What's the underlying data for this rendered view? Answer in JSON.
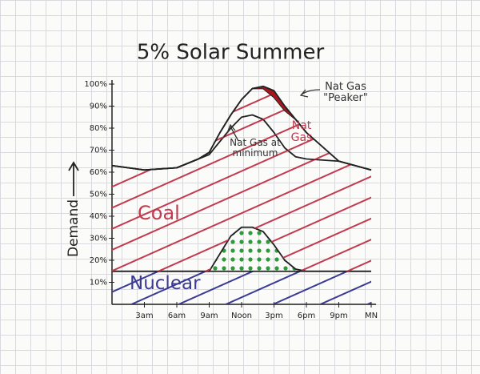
{
  "chart_data": {
    "type": "area",
    "stacked": true,
    "title": "5% Solar Summer",
    "y_label": "Demand",
    "x": [
      0,
      3,
      6,
      8,
      9,
      10,
      11,
      12,
      13,
      14,
      15,
      16,
      17,
      18,
      21,
      24
    ],
    "series": [
      {
        "name": "Nuclear",
        "color": "#3b3b94",
        "pattern": "hatch",
        "values": [
          15,
          15,
          15,
          15,
          15,
          15,
          15,
          15,
          15,
          15,
          15,
          15,
          15,
          15,
          15,
          15
        ]
      },
      {
        "color": "#2e9a3a",
        "pattern": "dots",
        "values": [
          0,
          0,
          0,
          0,
          0,
          8,
          16,
          20,
          20,
          18,
          12,
          5,
          1,
          0,
          0,
          0
        ]
      },
      {
        "name": "Coal",
        "color": "#c23a4e",
        "pattern": "hatch",
        "values": [
          48,
          46,
          47,
          51,
          53,
          51,
          49,
          50,
          51,
          51,
          51,
          51,
          51,
          51,
          50,
          46
        ]
      },
      {
        "name": "Nat Gas",
        "color": "#c23a4e",
        "pattern": "hatch",
        "values": [
          0,
          0,
          0,
          0,
          1,
          4,
          6,
          8,
          12,
          14,
          16,
          17,
          17,
          12,
          0,
          0
        ]
      },
      {
        "name": "Nat Gas \"Peaker\"",
        "color": "#a8161d",
        "pattern": "solid",
        "values": [
          0,
          0,
          0,
          0,
          0,
          0,
          0,
          0,
          0,
          1,
          3,
          2,
          0,
          0,
          0,
          0
        ]
      }
    ],
    "annotations": [
      "Nat Gas at minimum"
    ],
    "xlim": [
      0,
      24
    ],
    "ylim": [
      0,
      100
    ],
    "xticks": [
      {
        "value": 3,
        "label": "3am"
      },
      {
        "value": 6,
        "label": "6am"
      },
      {
        "value": 9,
        "label": "9am"
      },
      {
        "value": 12,
        "label": "Noon"
      },
      {
        "value": 15,
        "label": "3pm"
      },
      {
        "value": 18,
        "label": "6pm"
      },
      {
        "value": 21,
        "label": "9pm"
      },
      {
        "value": 24,
        "label": "MN"
      }
    ],
    "yticks": [
      {
        "value": 10,
        "label": "10%"
      },
      {
        "value": 20,
        "label": "20%"
      },
      {
        "value": 30,
        "label": "30%"
      },
      {
        "value": 40,
        "label": "40%"
      },
      {
        "value": 50,
        "label": "50%"
      },
      {
        "value": 60,
        "label": "60%"
      },
      {
        "value": 70,
        "label": "70%"
      },
      {
        "value": 80,
        "label": "80%"
      },
      {
        "value": 90,
        "label": "90%"
      },
      {
        "value": 100,
        "label": "100%"
      }
    ]
  }
}
